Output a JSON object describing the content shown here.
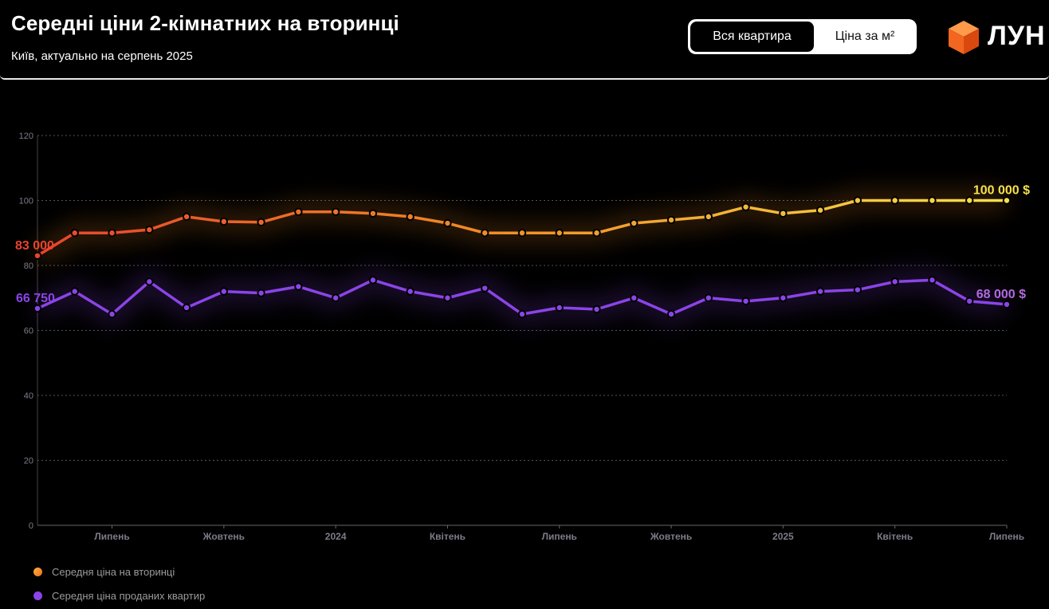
{
  "header": {
    "title": "Середні ціни 2-кімнатних на вторинці",
    "subtitle": "Київ, актуально на серпень 2025",
    "toggle": {
      "active_label": "Вся квартира",
      "inactive_label": "Ціна за м²"
    },
    "logo_text": "ЛУН"
  },
  "colors": {
    "background": "#000000",
    "series_a_start": "#e8432e",
    "series_a_mid": "#f08a24",
    "series_a_end": "#f7e04a",
    "series_b": "#8b44e8",
    "series_b_label": "#b36ae0",
    "axis_text": "#7c7c8a",
    "grid": "#555555",
    "legend_text": "#9a9a9a"
  },
  "chart_data": {
    "type": "line",
    "y_unit": "тис. $",
    "ylim": [
      0,
      120
    ],
    "yticks": [
      0,
      20,
      40,
      60,
      80,
      100,
      120
    ],
    "grid": true,
    "x_tick_labels": [
      "Липень",
      "Жовтень",
      "2024",
      "Квітень",
      "Липень",
      "Жовтень",
      "2025",
      "Квітень",
      "Липень"
    ],
    "x_tick_indices": [
      2,
      5,
      8,
      11,
      14,
      17,
      20,
      23,
      26
    ],
    "series": [
      {
        "name": "Середня ціна на вторинці",
        "start_label": "83 000",
        "end_label": "100 000 $",
        "values": [
          83,
          90,
          90,
          91,
          95,
          93.5,
          93.3,
          96.5,
          96.5,
          96,
          95,
          93,
          90,
          90,
          90,
          90,
          93,
          94,
          95,
          98,
          96,
          97,
          100,
          100,
          100,
          100,
          100
        ]
      },
      {
        "name": "Середня ціна проданих квартир",
        "start_label": "66 750",
        "end_label": "68 000 $",
        "values": [
          66.75,
          72,
          65,
          75,
          67,
          72,
          71.5,
          73.5,
          70,
          75.5,
          72,
          70,
          73,
          65,
          67,
          66.5,
          70,
          65,
          70,
          69,
          70,
          72,
          72.5,
          75,
          75.5,
          69,
          68
        ]
      }
    ]
  }
}
